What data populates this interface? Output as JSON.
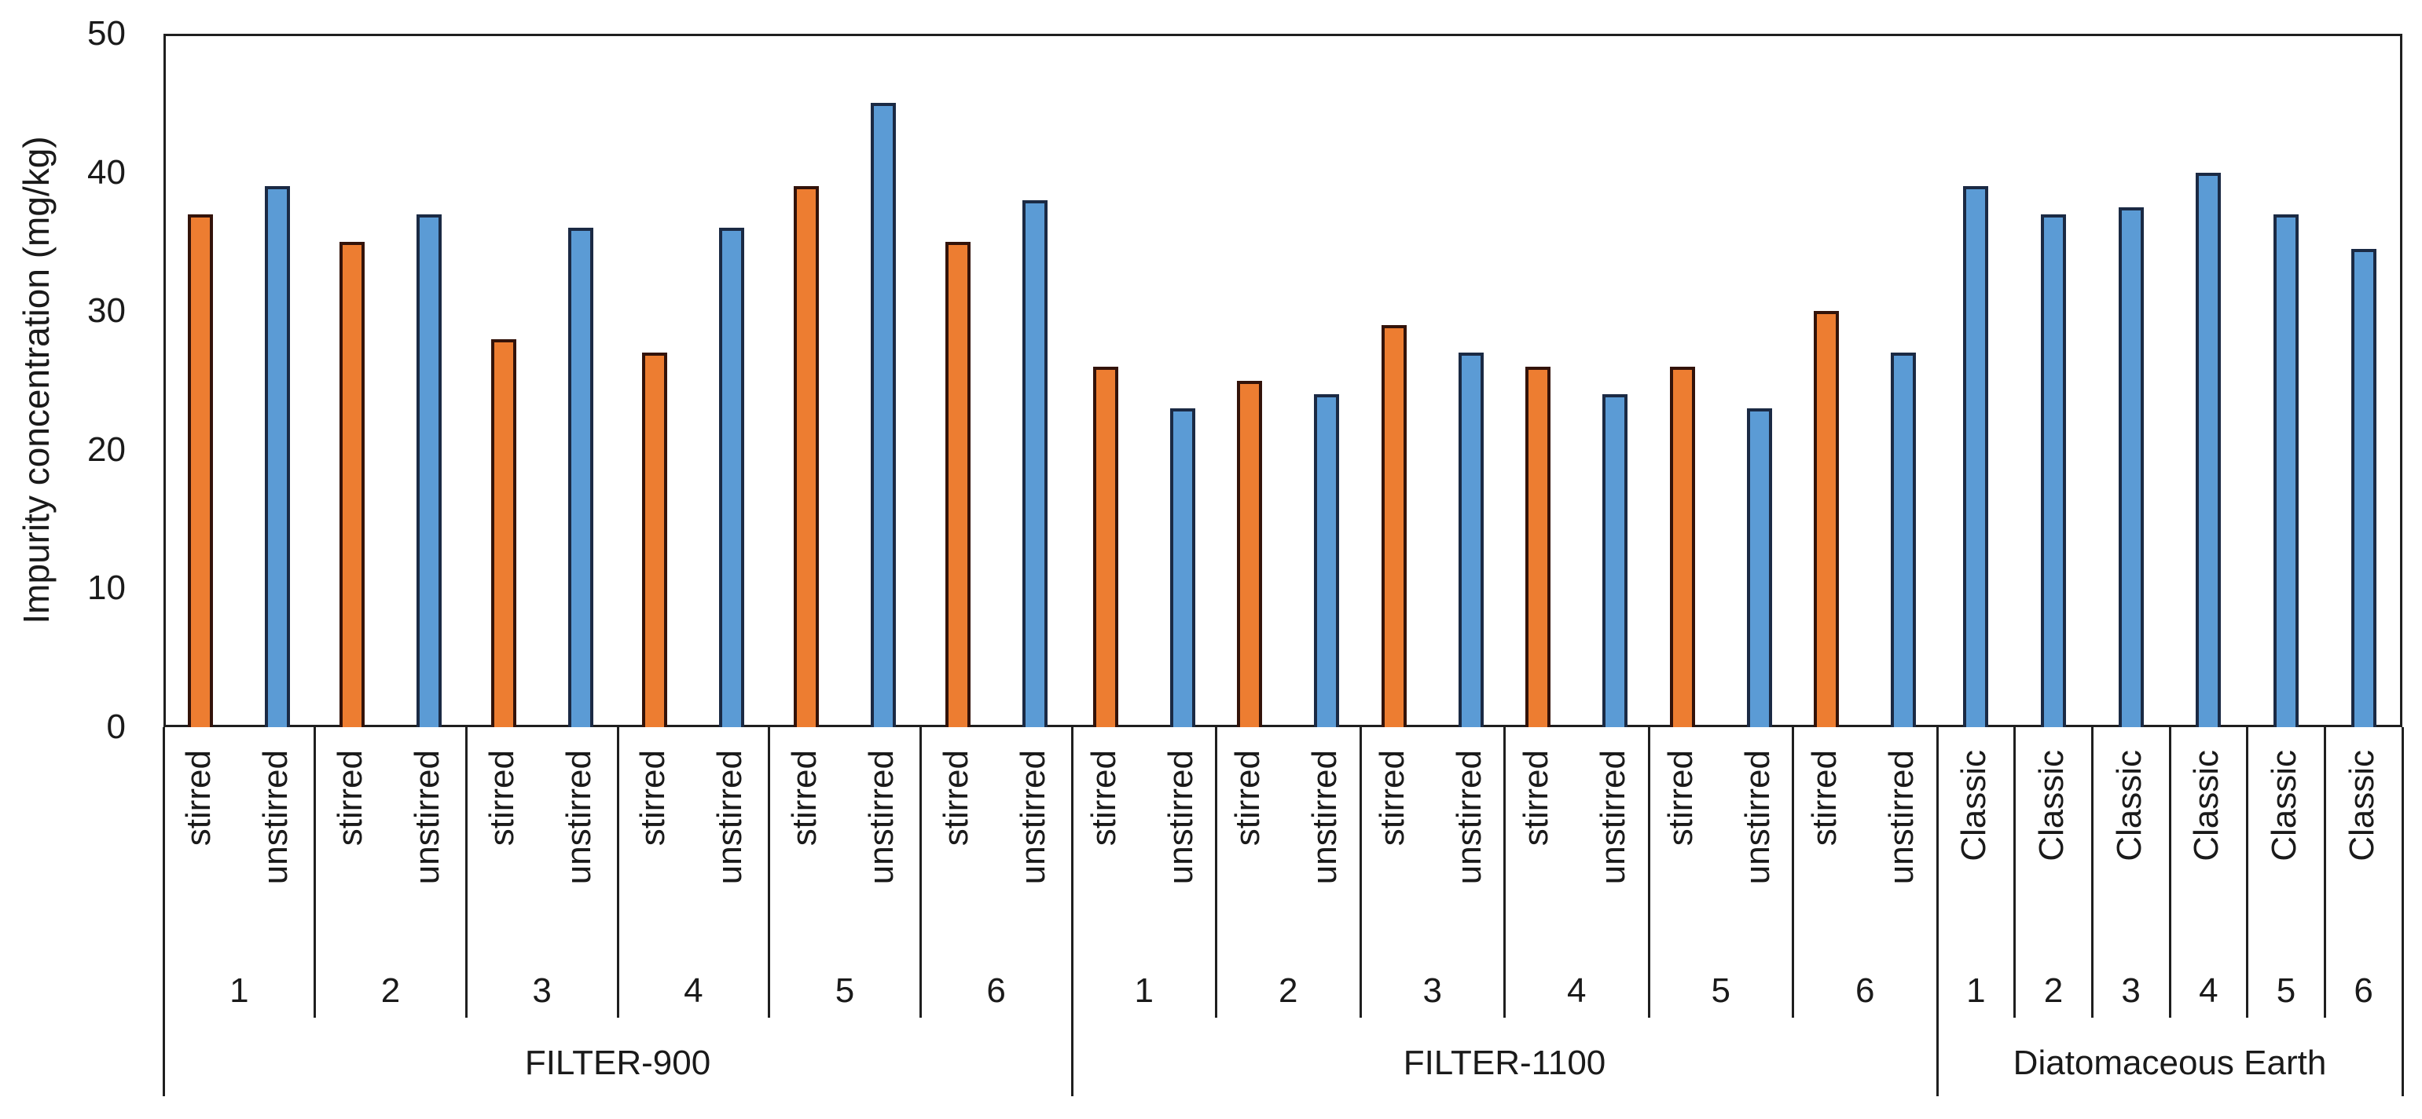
{
  "chart_data": {
    "type": "bar",
    "title": "",
    "ylabel": "Impurity concentration (mg/kg)",
    "xlabel": "",
    "ylim": [
      0,
      50
    ],
    "yticks": [
      50,
      40,
      30,
      20,
      10,
      0
    ],
    "grid": false,
    "legend": "none",
    "bar_colors": {
      "stirred": {
        "fill": "#ED7D31",
        "border": "#33130A"
      },
      "unstirred": {
        "fill": "#5B9BD5",
        "border": "#1B2A44"
      },
      "Classic": {
        "fill": "#5B9BD5",
        "border": "#1B2A44"
      }
    },
    "axis_line_color": "#1F1F1F",
    "groups": [
      {
        "label": "FILTER-900",
        "bar_labels": [
          "stirred",
          "unstirred"
        ],
        "subgroups": [
          {
            "label": "1",
            "values": [
              37,
              39
            ]
          },
          {
            "label": "2",
            "values": [
              35,
              37
            ]
          },
          {
            "label": "3",
            "values": [
              28,
              36
            ]
          },
          {
            "label": "4",
            "values": [
              27,
              36
            ]
          },
          {
            "label": "5",
            "values": [
              39,
              45
            ]
          },
          {
            "label": "6",
            "values": [
              35,
              38
            ]
          }
        ]
      },
      {
        "label": "FILTER-1100",
        "bar_labels": [
          "stirred",
          "unstirred"
        ],
        "subgroups": [
          {
            "label": "1",
            "values": [
              26,
              23
            ]
          },
          {
            "label": "2",
            "values": [
              25,
              24
            ]
          },
          {
            "label": "3",
            "values": [
              29,
              27
            ]
          },
          {
            "label": "4",
            "values": [
              26,
              24
            ]
          },
          {
            "label": "5",
            "values": [
              26,
              23
            ]
          },
          {
            "label": "6",
            "values": [
              30,
              27
            ]
          }
        ]
      },
      {
        "label": "Diatomaceous Earth",
        "bar_labels": [
          "Classic"
        ],
        "subgroups": [
          {
            "label": "1",
            "values": [
              39
            ]
          },
          {
            "label": "2",
            "values": [
              37
            ]
          },
          {
            "label": "3",
            "values": [
              37.5
            ]
          },
          {
            "label": "4",
            "values": [
              40
            ]
          },
          {
            "label": "5",
            "values": [
              37
            ]
          },
          {
            "label": "6",
            "values": [
              34.5
            ]
          }
        ]
      }
    ]
  }
}
